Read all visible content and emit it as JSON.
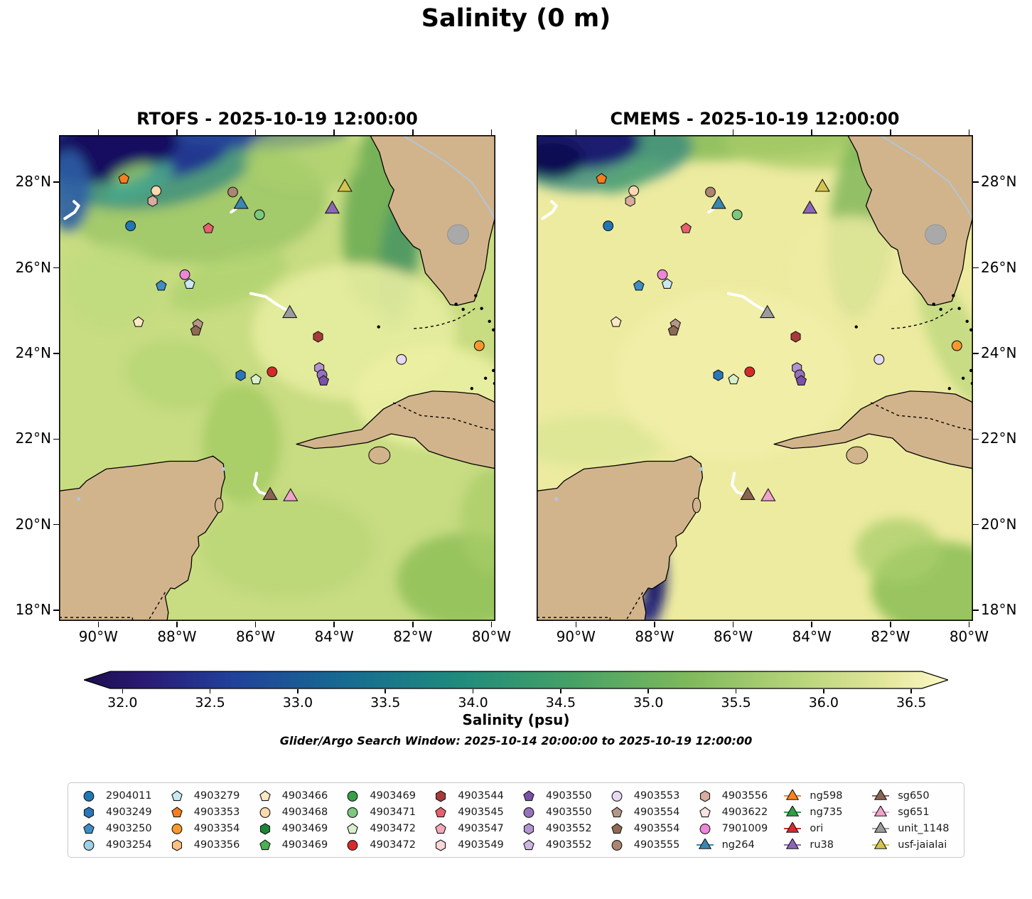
{
  "title": "Salinity (0 m)",
  "subtitle": "Glider/Argo Search Window: 2025-10-14 20:00:00 to 2025-10-19 12:00:00",
  "panels": [
    {
      "key": "rtofs",
      "title": "RTOFS - 2025-10-19 12:00:00",
      "ocean_base": "#c8dc82"
    },
    {
      "key": "cmems",
      "title": "CMEMS - 2025-10-19 12:00:00",
      "ocean_base": "#edeba0"
    }
  ],
  "land_color": "#d2b48c",
  "lake_color": "#a9a9a9",
  "colorbar": {
    "label": "Salinity (psu)",
    "ticks": [
      "32.0",
      "32.5",
      "33.0",
      "33.5",
      "34.0",
      "34.5",
      "35.0",
      "35.5",
      "36.0",
      "36.5"
    ],
    "tick_values": [
      32.0,
      32.5,
      33.0,
      33.5,
      34.0,
      34.5,
      35.0,
      35.5,
      36.0,
      36.5
    ],
    "value_range": [
      31.93,
      36.56
    ],
    "extend": "both",
    "stops": [
      [
        0.0,
        "#1c0e4e"
      ],
      [
        0.07,
        "#2a1a74"
      ],
      [
        0.17,
        "#21409a"
      ],
      [
        0.3,
        "#176a92"
      ],
      [
        0.43,
        "#1f8a7e"
      ],
      [
        0.56,
        "#44a066"
      ],
      [
        0.7,
        "#7fb95c"
      ],
      [
        0.83,
        "#b9d57c"
      ],
      [
        0.93,
        "#e4e79c"
      ],
      [
        1.0,
        "#fdf9c8"
      ]
    ]
  },
  "legend": {
    "entries": [
      {
        "label": "2904011",
        "marker": "circle",
        "color": "#2077b4"
      },
      {
        "label": "4903249",
        "marker": "hexagon",
        "color": "#2a76ba"
      },
      {
        "label": "4903250",
        "marker": "pentagon",
        "color": "#3e8ec4"
      },
      {
        "label": "4903254",
        "marker": "circle",
        "color": "#9fd0e8"
      },
      {
        "label": "4903279",
        "marker": "pentagon",
        "color": "#c9e8f2"
      },
      {
        "label": "4903353",
        "marker": "pentagon",
        "color": "#f67d20"
      },
      {
        "label": "4903354",
        "marker": "circle",
        "color": "#f9992b"
      },
      {
        "label": "4903356",
        "marker": "hexagon",
        "color": "#fdc082"
      },
      {
        "label": "4903466",
        "marker": "pentagon",
        "color": "#fde8c4"
      },
      {
        "label": "4903468",
        "marker": "circle",
        "color": "#fdd9b0"
      },
      {
        "label": "4903469",
        "marker": "hexagon",
        "color": "#1d8636"
      },
      {
        "label": "4903469",
        "marker": "pentagon",
        "color": "#4cb052"
      },
      {
        "label": "4903469",
        "marker": "circle",
        "color": "#37a048"
      },
      {
        "label": "4903471",
        "marker": "circle",
        "color": "#7cc87e"
      },
      {
        "label": "4903472",
        "marker": "pentagon",
        "color": "#d9f0cc"
      },
      {
        "label": "4903472",
        "marker": "circle",
        "color": "#d62a2a"
      },
      {
        "label": "4903544",
        "marker": "hexagon",
        "color": "#a93a3a"
      },
      {
        "label": "4903545",
        "marker": "pentagon",
        "color": "#e8606c"
      },
      {
        "label": "4903547",
        "marker": "pentagon",
        "color": "#f4a9b8"
      },
      {
        "label": "4903549",
        "marker": "hexagon",
        "color": "#fad7d7"
      },
      {
        "label": "4903550",
        "marker": "pentagon",
        "color": "#7b52a8"
      },
      {
        "label": "4903550",
        "marker": "circle",
        "color": "#9672bc"
      },
      {
        "label": "4903552",
        "marker": "hexagon",
        "color": "#b394d0"
      },
      {
        "label": "4903552",
        "marker": "pentagon",
        "color": "#cdb6e2"
      },
      {
        "label": "4903553",
        "marker": "circle",
        "color": "#e6d9f2"
      },
      {
        "label": "4903554",
        "marker": "pentagon",
        "color": "#b59789"
      },
      {
        "label": "4903554",
        "marker": "pentagon",
        "color": "#8f6b55"
      },
      {
        "label": "4903555",
        "marker": "circle",
        "color": "#ab8570"
      },
      {
        "label": "4903556",
        "marker": "hexagon",
        "color": "#d9aca0"
      },
      {
        "label": "4903622",
        "marker": "pentagon",
        "color": "#f6e4e0"
      },
      {
        "label": "7901009",
        "marker": "circle",
        "color": "#ee86d8"
      },
      {
        "label": "ng264",
        "marker": "triangle",
        "color": "#3a87b0"
      },
      {
        "label": "ng598",
        "marker": "triangle",
        "color": "#f6851f"
      },
      {
        "label": "ng735",
        "marker": "triangle",
        "color": "#2f9e48"
      },
      {
        "label": "ori",
        "marker": "triangle",
        "color": "#d42a32"
      },
      {
        "label": "ru38",
        "marker": "triangle",
        "color": "#8d66b8"
      },
      {
        "label": "sg650",
        "marker": "triangle",
        "color": "#8b6353"
      },
      {
        "label": "sg651",
        "marker": "triangle",
        "color": "#f0a3cb"
      },
      {
        "label": "unit_1148",
        "marker": "triangle",
        "color": "#9c9c9c"
      },
      {
        "label": "usf-jaialai",
        "marker": "triangle",
        "color": "#d4c44e"
      }
    ]
  },
  "chart_data": {
    "type": "geo-scatter",
    "extent": {
      "lon": [
        -91.0,
        -79.9
      ],
      "lat": [
        17.75,
        29.1
      ]
    },
    "axes": {
      "lon": {
        "labels": [
          "90°W",
          "88°W",
          "86°W",
          "84°W",
          "82°W",
          "80°W"
        ],
        "values": [
          -90,
          -88,
          -86,
          -84,
          -82,
          -80
        ]
      },
      "lat": {
        "labels": [
          "28°N",
          "26°N",
          "24°N",
          "22°N",
          "20°N",
          "18°N"
        ],
        "values": [
          28,
          26,
          24,
          22,
          20,
          18
        ]
      }
    },
    "markers": [
      {
        "id": "4903353",
        "marker": "pentagon",
        "color": "#f67d20",
        "lon": -89.35,
        "lat": 28.08
      },
      {
        "id": "4903468",
        "marker": "circle",
        "color": "#fdd9b0",
        "lon": -88.53,
        "lat": 27.8
      },
      {
        "id": "4903556",
        "marker": "hexagon",
        "color": "#d9aca0",
        "lon": -88.62,
        "lat": 27.56
      },
      {
        "id": "4903555",
        "marker": "circle",
        "color": "#ab8570",
        "lon": -86.58,
        "lat": 27.77
      },
      {
        "id": "ng264",
        "marker": "triangle",
        "color": "#3a87b0",
        "lon": -86.37,
        "lat": 27.48
      },
      {
        "id": "4903471",
        "marker": "circle",
        "color": "#7cc87e",
        "lon": -85.9,
        "lat": 27.24
      },
      {
        "id": "usf-jaialai",
        "marker": "triangle",
        "color": "#d4c44e",
        "lon": -83.73,
        "lat": 27.88
      },
      {
        "id": "ru38",
        "marker": "triangle",
        "color": "#8d66b8",
        "lon": -84.05,
        "lat": 27.37
      },
      {
        "id": "2904011",
        "marker": "circle",
        "color": "#2077b4",
        "lon": -89.18,
        "lat": 26.98
      },
      {
        "id": "4903545",
        "marker": "pentagon",
        "color": "#e8606c",
        "lon": -87.2,
        "lat": 26.92
      },
      {
        "id": "7901009",
        "marker": "circle",
        "color": "#ee86d8",
        "lon": -87.8,
        "lat": 25.84
      },
      {
        "id": "4903250",
        "marker": "pentagon",
        "color": "#3e8ec4",
        "lon": -88.4,
        "lat": 25.58
      },
      {
        "id": "4903279",
        "marker": "pentagon",
        "color": "#c9e8f2",
        "lon": -87.68,
        "lat": 25.62
      },
      {
        "id": "4903466",
        "marker": "pentagon",
        "color": "#fde8c4",
        "lon": -88.98,
        "lat": 24.73
      },
      {
        "id": "4903554",
        "marker": "pentagon",
        "color": "#b59789",
        "lon": -87.47,
        "lat": 24.68
      },
      {
        "id": "4903554",
        "marker": "pentagon",
        "color": "#8f6b55",
        "lon": -87.52,
        "lat": 24.53
      },
      {
        "id": "unit_1148",
        "marker": "triangle",
        "color": "#9c9c9c",
        "lon": -85.13,
        "lat": 24.93
      },
      {
        "id": "4903544",
        "marker": "hexagon",
        "color": "#a93a3a",
        "lon": -84.41,
        "lat": 24.39
      },
      {
        "id": "4903354",
        "marker": "circle",
        "color": "#f9992b",
        "lon": -80.31,
        "lat": 24.18
      },
      {
        "id": "4903553",
        "marker": "circle",
        "color": "#e6d9f2",
        "lon": -82.29,
        "lat": 23.86
      },
      {
        "id": "4903552",
        "marker": "hexagon",
        "color": "#b394d0",
        "lon": -84.38,
        "lat": 23.66
      },
      {
        "id": "4903550",
        "marker": "circle",
        "color": "#9672bc",
        "lon": -84.31,
        "lat": 23.5
      },
      {
        "id": "4903550",
        "marker": "pentagon",
        "color": "#7b52a8",
        "lon": -84.27,
        "lat": 23.36
      },
      {
        "id": "4903472",
        "marker": "circle",
        "color": "#d62a2a",
        "lon": -85.58,
        "lat": 23.57
      },
      {
        "id": "4903249",
        "marker": "hexagon",
        "color": "#2a76ba",
        "lon": -86.38,
        "lat": 23.49
      },
      {
        "id": "4903472",
        "marker": "pentagon",
        "color": "#d9f0cc",
        "lon": -85.99,
        "lat": 23.39
      },
      {
        "id": "sg650",
        "marker": "triangle",
        "color": "#8b6353",
        "lon": -85.63,
        "lat": 20.68
      },
      {
        "id": "sg651",
        "marker": "triangle",
        "color": "#f0a3cb",
        "lon": -85.11,
        "lat": 20.65
      }
    ],
    "tracks": [
      {
        "color": "#ffffff",
        "points": [
          [
            -90.85,
            27.15
          ],
          [
            -90.6,
            27.3
          ],
          [
            -90.5,
            27.45
          ],
          [
            -90.62,
            27.55
          ]
        ]
      },
      {
        "color": "#ffffff",
        "points": [
          [
            -86.12,
            25.4
          ],
          [
            -85.75,
            25.33
          ],
          [
            -85.45,
            25.14
          ],
          [
            -85.17,
            24.99
          ]
        ]
      },
      {
        "color": "#ffffff",
        "points": [
          [
            -85.97,
            21.2
          ],
          [
            -86.03,
            20.93
          ],
          [
            -85.9,
            20.76
          ],
          [
            -85.7,
            20.7
          ]
        ]
      },
      {
        "color": "#ffffff",
        "points": [
          [
            -86.62,
            27.3
          ],
          [
            -86.45,
            27.42
          ]
        ]
      }
    ]
  }
}
